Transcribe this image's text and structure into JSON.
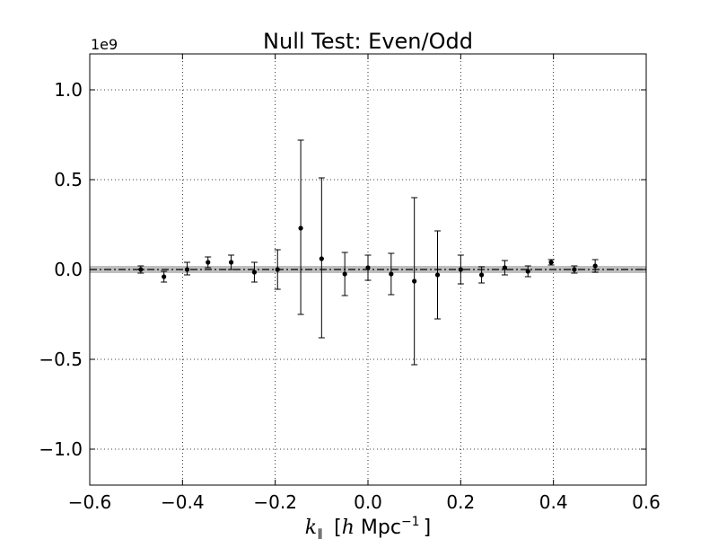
{
  "chart_data": {
    "type": "scatter",
    "title": "Null Test: Even/Odd",
    "xlabel": {
      "symbol": "k",
      "subscript": "∥",
      "bracket_open": "[",
      "h": "h",
      "unit": " Mpc",
      "exponent": "−1",
      "bracket_close": "]"
    },
    "ylabel": "",
    "y_offset_text": "1e9",
    "xlim": [
      -0.6,
      0.6
    ],
    "ylim": [
      -1.2,
      1.2
    ],
    "x_scale": "linear",
    "y_scale": "linear",
    "y_units_multiplier": 1000000000,
    "grid": true,
    "grid_style": "dotted",
    "legend": "none",
    "x_ticks": [
      -0.6,
      -0.4,
      -0.2,
      0.0,
      0.2,
      0.4,
      0.6
    ],
    "x_tick_labels": [
      "−0.6",
      "−0.4",
      "−0.2",
      "0.0",
      "0.2",
      "0.4",
      "0.6"
    ],
    "y_ticks": [
      -1.0,
      -0.5,
      0.0,
      0.5,
      1.0
    ],
    "y_tick_labels": [
      "−1.0",
      "−0.5",
      "0.0",
      "0.5",
      "1.0"
    ],
    "zero_line": {
      "y": 0.0,
      "style": "dash-dot",
      "color": "#000000"
    },
    "shaded_band": {
      "y_low": -0.02,
      "y_high": 0.02,
      "color": "#bebebe"
    },
    "series": [
      {
        "marker_color": "#000000",
        "points": [
          {
            "x": -0.49,
            "y": 0.0,
            "err_low": 0.02,
            "err_high": 0.02
          },
          {
            "x": -0.44,
            "y": -0.04,
            "err_low": 0.03,
            "err_high": 0.03
          },
          {
            "x": -0.39,
            "y": 0.0,
            "err_low": 0.03,
            "err_high": 0.04
          },
          {
            "x": -0.345,
            "y": 0.04,
            "err_low": 0.03,
            "err_high": 0.03
          },
          {
            "x": -0.295,
            "y": 0.04,
            "err_low": 0.04,
            "err_high": 0.04
          },
          {
            "x": -0.245,
            "y": -0.015,
            "err_low": 0.055,
            "err_high": 0.055
          },
          {
            "x": -0.195,
            "y": 0.0,
            "err_low": 0.11,
            "err_high": 0.11
          },
          {
            "x": -0.145,
            "y": 0.23,
            "err_low": 0.48,
            "err_high": 0.49
          },
          {
            "x": -0.1,
            "y": 0.06,
            "err_low": 0.44,
            "err_high": 0.45
          },
          {
            "x": -0.05,
            "y": -0.025,
            "err_low": 0.12,
            "err_high": 0.12
          },
          {
            "x": 0.0,
            "y": 0.01,
            "err_low": 0.07,
            "err_high": 0.07
          },
          {
            "x": 0.05,
            "y": -0.025,
            "err_low": 0.115,
            "err_high": 0.115
          },
          {
            "x": 0.1,
            "y": -0.065,
            "err_low": 0.465,
            "err_high": 0.465
          },
          {
            "x": 0.15,
            "y": -0.03,
            "err_low": 0.245,
            "err_high": 0.245
          },
          {
            "x": 0.2,
            "y": 0.0,
            "err_low": 0.08,
            "err_high": 0.08
          },
          {
            "x": 0.245,
            "y": -0.03,
            "err_low": 0.045,
            "err_high": 0.045
          },
          {
            "x": 0.295,
            "y": 0.01,
            "err_low": 0.04,
            "err_high": 0.04
          },
          {
            "x": 0.345,
            "y": -0.01,
            "err_low": 0.03,
            "err_high": 0.03
          },
          {
            "x": 0.395,
            "y": 0.04,
            "err_low": 0.015,
            "err_high": 0.015
          },
          {
            "x": 0.445,
            "y": 0.0,
            "err_low": 0.02,
            "err_high": 0.02
          },
          {
            "x": 0.49,
            "y": 0.02,
            "err_low": 0.035,
            "err_high": 0.035
          }
        ]
      }
    ]
  }
}
